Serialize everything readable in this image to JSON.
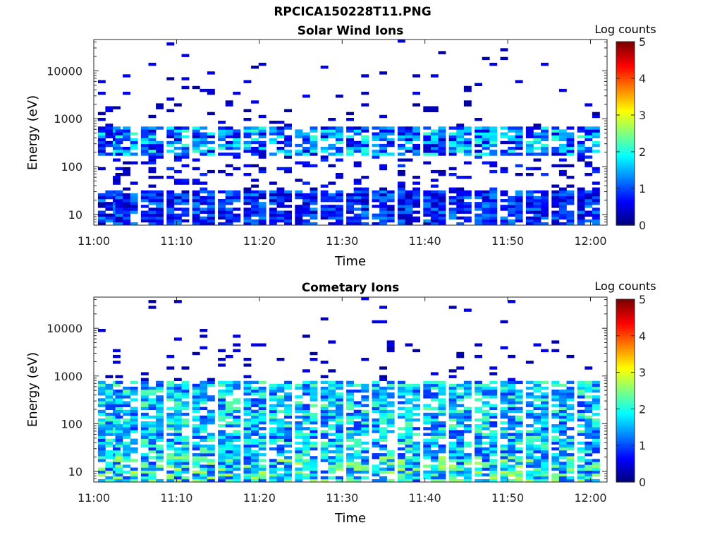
{
  "figure": {
    "title": "RPCICA150228T11.PNG"
  },
  "chart_data": [
    {
      "type": "heatmap",
      "title": "Solar Wind Ions",
      "xlabel": "Time",
      "ylabel": "Energy (eV)",
      "y_scale": "log",
      "ylim": [
        6,
        45000
      ],
      "xlim": [
        "11:00",
        "12:02"
      ],
      "x_ticks": [
        "11:00",
        "11:10",
        "11:20",
        "11:30",
        "11:40",
        "11:50",
        "12:00"
      ],
      "y_ticks": [
        "10",
        "100",
        "1000",
        "10000"
      ],
      "colorbar": {
        "label": "Log counts",
        "ticks": [
          "0",
          "1",
          "2",
          "3",
          "4",
          "5"
        ],
        "range": [
          0,
          5
        ],
        "colormap": "jet"
      },
      "pattern": {
        "scan_starts_min": [
          0.5,
          2.6,
          5.7,
          8.8,
          11.9,
          15.0,
          18.1,
          21.2,
          24.3,
          27.4,
          30.5,
          33.6,
          36.7,
          39.8,
          42.9,
          46.0,
          49.1,
          52.2,
          55.3,
          58.4
        ],
        "main_band_eV": [
          150,
          600
        ],
        "main_band_log_counts": [
          0.3,
          2.2
        ],
        "low_band_eV": [
          6,
          30
        ],
        "low_band_log_counts": [
          0.2,
          1.4
        ]
      }
    },
    {
      "type": "heatmap",
      "title": "Cometary Ions",
      "xlabel": "Time",
      "ylabel": "Energy (eV)",
      "y_scale": "log",
      "ylim": [
        6,
        45000
      ],
      "xlim": [
        "11:00",
        "12:02"
      ],
      "x_ticks": [
        "11:00",
        "11:10",
        "11:20",
        "11:30",
        "11:40",
        "11:50",
        "12:00"
      ],
      "y_ticks": [
        "10",
        "100",
        "1000",
        "10000"
      ],
      "colorbar": {
        "label": "Log counts",
        "ticks": [
          "0",
          "1",
          "2",
          "3",
          "4",
          "5"
        ],
        "range": [
          0,
          5
        ],
        "colormap": "jet"
      },
      "pattern": {
        "scan_starts_min": [
          0.5,
          2.6,
          5.7,
          8.8,
          11.9,
          15.0,
          18.1,
          21.2,
          24.3,
          27.4,
          30.5,
          33.6,
          36.7,
          39.8,
          42.9,
          46.0,
          49.1,
          52.2,
          55.3,
          58.4
        ],
        "main_band_eV": [
          20,
          700
        ],
        "main_band_log_counts": [
          0.8,
          2.4
        ],
        "low_band_eV": [
          6,
          30
        ],
        "low_band_log_counts": [
          0.8,
          2.8
        ]
      }
    }
  ]
}
